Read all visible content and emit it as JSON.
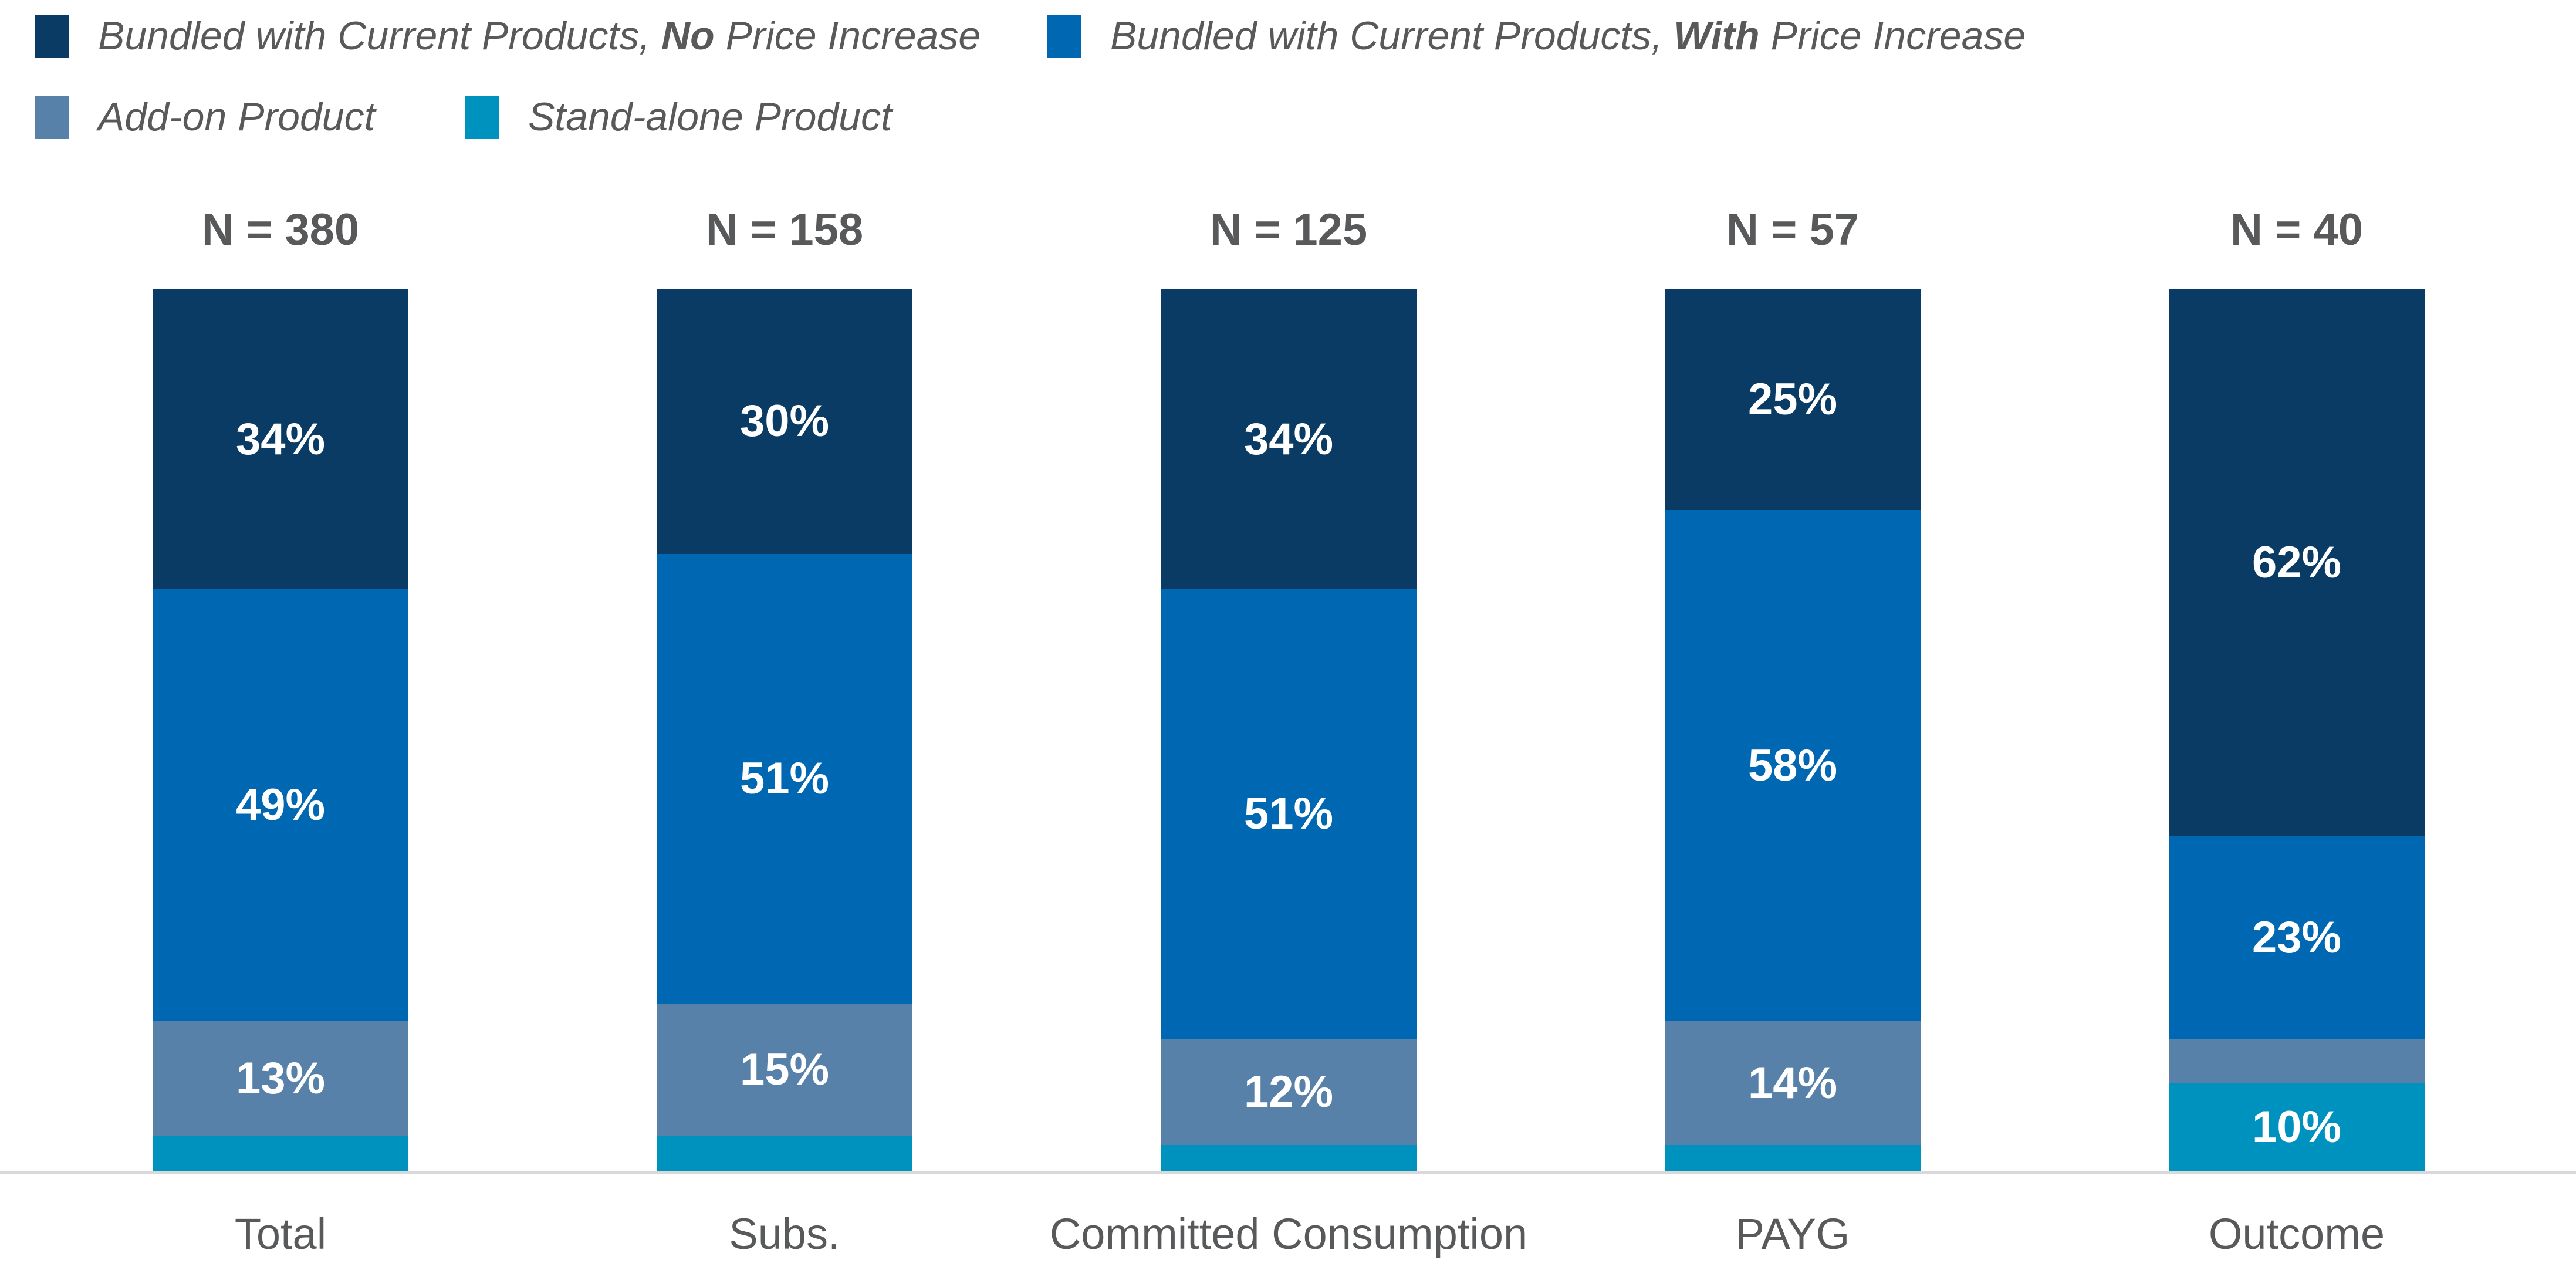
{
  "colors": {
    "navy": "#0a3b64",
    "blue": "#0068b3",
    "steel": "#5781a8",
    "cyan": "#0092bf",
    "text_gray": "#58595b",
    "legend_text": "#595959",
    "value_label_text": "#ffffff",
    "baseline": "#d9d9d9",
    "background": "#ffffff"
  },
  "legend": {
    "items": [
      {
        "color_key": "navy",
        "pre": "Bundled with Current Products, ",
        "emph": "No",
        "post": " Price Increase"
      },
      {
        "color_key": "blue",
        "pre": "Bundled with Current Products, ",
        "emph": "With",
        "post": " Price Increase"
      },
      {
        "color_key": "steel",
        "pre": "",
        "emph": "",
        "post": "Add-on Product"
      },
      {
        "color_key": "cyan",
        "pre": "",
        "emph": "",
        "post": "Stand-alone Product"
      }
    ]
  },
  "chart_data": {
    "type": "bar",
    "variant": "100%-stacked-column",
    "grid": false,
    "legend_position": "top-left",
    "ylim": [
      0,
      100
    ],
    "categories": [
      "Total",
      "Subs.",
      "Committed Consumption",
      "PAYG",
      "Outcome"
    ],
    "n_labels": [
      "N = 380",
      "N = 158",
      "N = 125",
      "N = 57",
      "N = 40"
    ],
    "series": [
      {
        "name": "Bundled with Current Products, No Price Increase",
        "color_key": "navy",
        "values": [
          34,
          30,
          34,
          25,
          62
        ],
        "labels": [
          "34%",
          "30%",
          "34%",
          "25%",
          "62%"
        ]
      },
      {
        "name": "Bundled with Current Products, With Price Increase",
        "color_key": "blue",
        "values": [
          49,
          51,
          51,
          58,
          23
        ],
        "labels": [
          "49%",
          "51%",
          "51%",
          "58%",
          "23%"
        ]
      },
      {
        "name": "Add-on Product",
        "color_key": "steel",
        "values": [
          13,
          15,
          12,
          14,
          5
        ],
        "labels": [
          "13%",
          "15%",
          "12%",
          "14%",
          ""
        ]
      },
      {
        "name": "Stand-alone Product",
        "color_key": "cyan",
        "values": [
          4,
          4,
          3,
          3,
          10
        ],
        "labels": [
          "",
          "",
          "",
          "",
          "10%"
        ]
      }
    ]
  }
}
